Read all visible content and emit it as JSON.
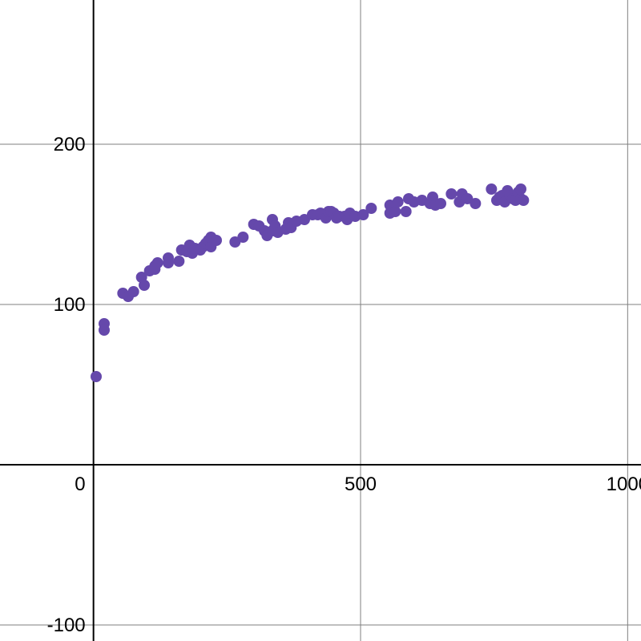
{
  "chart_data": {
    "type": "scatter",
    "title": "",
    "xlabel": "",
    "ylabel": "",
    "xlim": [
      -175,
      1025
    ],
    "ylim": [
      -110,
      290
    ],
    "grid": true,
    "x_ticks": [
      0,
      500,
      1000
    ],
    "x_tick_labels": [
      "0",
      "500",
      "1000"
    ],
    "y_ticks": [
      -100,
      100,
      200
    ],
    "y_tick_labels": [
      "-100",
      "100",
      "200"
    ],
    "colors": {
      "points": "#6548ab",
      "axis": "#000000",
      "grid": "#7f7f7f"
    },
    "series": [
      {
        "points": [
          [
            5,
            55
          ],
          [
            20,
            88
          ],
          [
            20,
            84
          ],
          [
            55,
            107
          ],
          [
            65,
            105
          ],
          [
            75,
            108
          ],
          [
            90,
            117
          ],
          [
            95,
            112
          ],
          [
            105,
            121
          ],
          [
            115,
            122
          ],
          [
            120,
            126
          ],
          [
            115,
            124
          ],
          [
            140,
            129
          ],
          [
            140,
            126
          ],
          [
            160,
            127
          ],
          [
            165,
            134
          ],
          [
            175,
            133
          ],
          [
            180,
            137
          ],
          [
            185,
            132
          ],
          [
            190,
            135
          ],
          [
            200,
            134
          ],
          [
            205,
            136
          ],
          [
            210,
            138
          ],
          [
            215,
            140
          ],
          [
            220,
            136
          ],
          [
            220,
            142
          ],
          [
            230,
            140
          ],
          [
            265,
            139
          ],
          [
            280,
            142
          ],
          [
            300,
            150
          ],
          [
            310,
            149
          ],
          [
            320,
            146
          ],
          [
            325,
            143
          ],
          [
            335,
            153
          ],
          [
            335,
            146
          ],
          [
            340,
            149
          ],
          [
            345,
            145
          ],
          [
            360,
            147
          ],
          [
            365,
            151
          ],
          [
            370,
            148
          ],
          [
            380,
            152
          ],
          [
            395,
            153
          ],
          [
            410,
            156
          ],
          [
            420,
            156
          ],
          [
            425,
            157
          ],
          [
            435,
            154
          ],
          [
            440,
            158
          ],
          [
            445,
            158
          ],
          [
            450,
            157
          ],
          [
            455,
            154
          ],
          [
            460,
            155
          ],
          [
            470,
            155
          ],
          [
            475,
            153
          ],
          [
            480,
            157
          ],
          [
            490,
            155
          ],
          [
            505,
            156
          ],
          [
            520,
            160
          ],
          [
            555,
            162
          ],
          [
            555,
            157
          ],
          [
            565,
            158
          ],
          [
            570,
            164
          ],
          [
            585,
            158
          ],
          [
            590,
            166
          ],
          [
            600,
            164
          ],
          [
            615,
            165
          ],
          [
            630,
            163
          ],
          [
            635,
            167
          ],
          [
            640,
            162
          ],
          [
            650,
            163
          ],
          [
            670,
            169
          ],
          [
            685,
            164
          ],
          [
            690,
            169
          ],
          [
            700,
            166
          ],
          [
            715,
            163
          ],
          [
            745,
            172
          ],
          [
            755,
            165
          ],
          [
            760,
            167
          ],
          [
            765,
            168
          ],
          [
            770,
            164
          ],
          [
            775,
            171
          ],
          [
            780,
            168
          ],
          [
            785,
            166
          ],
          [
            790,
            165
          ],
          [
            795,
            170
          ],
          [
            800,
            166
          ],
          [
            805,
            165
          ],
          [
            800,
            172
          ]
        ]
      }
    ]
  }
}
